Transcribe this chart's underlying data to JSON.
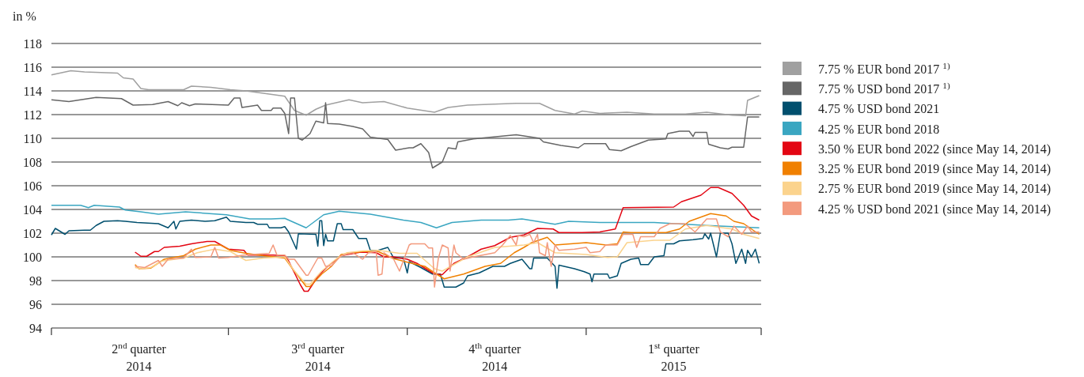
{
  "chart_data": {
    "type": "line",
    "ylabel": "in %",
    "ylim": [
      94,
      118
    ],
    "yticks": [
      94,
      96,
      98,
      100,
      102,
      104,
      106,
      108,
      110,
      112,
      114,
      116,
      118
    ],
    "xlim": [
      "2014-04-01",
      "2015-04-01"
    ],
    "xticks": [
      {
        "value": "2014-04-01",
        "label": null
      },
      {
        "value": "2014-05-16",
        "label": "2$^{nd}$ quarter 2014"
      },
      {
        "value": "2014-07-01",
        "label": null
      },
      {
        "value": "2014-08-16",
        "label": "3$^{rd}$ quarter 2014"
      },
      {
        "value": "2014-10-01",
        "label": null
      },
      {
        "value": "2014-11-15",
        "label": "4$^{th}$ quarter 2014"
      },
      {
        "value": "2015-01-01",
        "label": null
      },
      {
        "value": "2015-02-15",
        "label": "1$^{st}$ quarter 2015"
      },
      {
        "value": "2015-04-01",
        "label": null
      }
    ],
    "grid": "y",
    "legend": "right",
    "series": [
      {
        "name": "7.75 % EUR bond 2017 $^{1)}$",
        "color": "#a0a0a0",
        "x": [
          "2014-04-01",
          "2014-04-11",
          "2014-04-18",
          "2014-05-05",
          "2014-05-08",
          "2014-05-13",
          "2014-05-17",
          "2014-05-21",
          "2014-06-08",
          "2014-06-12",
          "2014-06-22",
          "2014-07-02",
          "2014-07-10",
          "2014-07-19",
          "2014-07-30",
          "2014-08-04",
          "2014-08-10",
          "2014-08-15",
          "2014-08-20",
          "2014-09-01",
          "2014-09-08",
          "2014-09-19",
          "2014-10-01",
          "2014-10-15",
          "2014-10-22",
          "2014-11-01",
          "2014-11-26",
          "2014-12-08",
          "2014-12-16",
          "2014-12-26",
          "2014-12-30",
          "2015-01-08",
          "2015-01-22",
          "2015-02-05",
          "2015-02-21",
          "2015-03-04",
          "2015-03-17",
          "2015-03-24",
          "2015-03-25",
          "2015-03-31"
        ],
        "values": [
          115.35,
          115.7,
          115.6,
          115.5,
          115.1,
          115.0,
          114.2,
          114.1,
          114.1,
          114.4,
          114.3,
          114.1,
          114.0,
          113.8,
          113.55,
          112.35,
          111.95,
          112.45,
          112.8,
          113.25,
          113.0,
          113.1,
          112.55,
          112.2,
          112.6,
          112.8,
          112.95,
          112.95,
          112.35,
          112.05,
          112.3,
          112.1,
          112.2,
          112.05,
          112.05,
          112.2,
          111.95,
          111.9,
          113.2,
          113.6
        ]
      },
      {
        "name": "7.75 % USD bond 2017 $^{1)}$",
        "color": "#666666",
        "x": [
          "2014-04-01",
          "2014-04-10",
          "2014-04-24",
          "2014-05-07",
          "2014-05-13",
          "2014-05-23",
          "2014-05-31",
          "2014-06-05",
          "2014-06-07",
          "2014-06-11",
          "2014-06-14",
          "2014-07-01",
          "2014-07-04",
          "2014-07-07",
          "2014-07-08",
          "2014-07-16",
          "2014-07-18",
          "2014-07-23",
          "2014-07-24",
          "2014-07-28",
          "2014-07-30",
          "2014-08-01",
          "2014-08-02",
          "2014-08-04",
          "2014-08-06",
          "2014-08-08",
          "2014-08-12",
          "2014-08-15",
          "2014-08-19",
          "2014-08-20",
          "2014-08-21",
          "2014-08-27",
          "2014-09-03",
          "2014-09-08",
          "2014-09-12",
          "2014-09-21",
          "2014-09-25",
          "2014-10-02",
          "2014-10-04",
          "2014-10-08",
          "2014-10-12",
          "2014-10-14",
          "2014-10-19",
          "2014-10-22",
          "2014-10-26",
          "2014-10-27",
          "2014-11-04",
          "2014-11-26",
          "2014-12-08",
          "2014-12-10",
          "2014-12-19",
          "2014-12-28",
          "2014-12-31",
          "2015-01-11",
          "2015-01-13",
          "2015-01-19",
          "2015-01-24",
          "2015-02-02",
          "2015-02-11",
          "2015-02-12",
          "2015-02-18",
          "2015-02-23",
          "2015-02-25",
          "2015-02-26",
          "2015-03-04",
          "2015-03-05",
          "2015-03-11",
          "2015-03-15",
          "2015-03-17",
          "2015-03-23",
          "2015-03-25",
          "2015-03-31"
        ],
        "values": [
          113.25,
          113.1,
          113.45,
          113.35,
          112.8,
          112.85,
          113.1,
          112.75,
          113.0,
          112.75,
          112.9,
          112.8,
          113.4,
          113.4,
          112.6,
          112.8,
          112.35,
          112.35,
          112.55,
          112.55,
          112.1,
          110.4,
          113.4,
          113.4,
          110.0,
          109.85,
          110.4,
          111.45,
          111.3,
          113.0,
          111.25,
          111.2,
          111.0,
          110.8,
          110.1,
          109.9,
          109.0,
          109.2,
          109.2,
          109.55,
          108.8,
          107.5,
          108.0,
          109.2,
          109.1,
          109.7,
          109.95,
          110.3,
          110.0,
          109.7,
          109.4,
          109.2,
          109.55,
          109.55,
          109.05,
          108.95,
          109.3,
          109.85,
          109.95,
          110.4,
          110.6,
          110.6,
          110.15,
          110.5,
          110.5,
          109.5,
          109.2,
          109.1,
          109.25,
          109.25,
          111.8,
          111.8
        ]
      },
      {
        "name": "4.75 % USD bond 2021",
        "color": "#004f6e",
        "x": [
          "2014-04-01",
          "2014-04-03",
          "2014-04-08",
          "2014-04-10",
          "2014-04-18",
          "2014-04-21",
          "2014-04-24",
          "2014-04-28",
          "2014-05-05",
          "2014-05-09",
          "2014-05-15",
          "2014-05-26",
          "2014-05-31",
          "2014-06-03",
          "2014-06-04",
          "2014-06-06",
          "2014-06-12",
          "2014-06-19",
          "2014-06-24",
          "2014-06-30",
          "2014-07-02",
          "2014-07-10",
          "2014-07-14",
          "2014-07-16",
          "2014-07-21",
          "2014-07-22",
          "2014-07-28",
          "2014-07-30",
          "2014-08-01",
          "2014-08-05",
          "2014-08-06",
          "2014-08-15",
          "2014-08-16",
          "2014-08-17",
          "2014-08-18",
          "2014-08-19",
          "2014-08-20",
          "2014-08-21",
          "2014-08-24",
          "2014-08-26",
          "2014-08-28",
          "2014-08-29",
          "2014-09-03",
          "2014-09-06",
          "2014-09-10",
          "2014-09-12",
          "2014-09-16",
          "2014-09-21",
          "2014-09-24",
          "2014-09-29",
          "2014-10-01",
          "2014-10-02",
          "2014-10-08",
          "2014-10-14",
          "2014-10-18",
          "2014-10-20",
          "2014-10-26",
          "2014-10-30",
          "2014-11-01",
          "2014-11-07",
          "2014-11-14",
          "2014-11-20",
          "2014-11-23",
          "2014-11-29",
          "2014-12-03",
          "2014-12-04",
          "2014-12-05",
          "2014-12-12",
          "2014-12-16",
          "2014-12-17",
          "2014-12-18",
          "2014-12-26",
          "2014-12-31",
          "2015-01-03",
          "2015-01-04",
          "2015-01-05",
          "2015-01-12",
          "2015-01-13",
          "2015-01-17",
          "2015-01-19",
          "2015-01-24",
          "2015-01-28",
          "2015-01-29",
          "2015-02-02",
          "2015-02-05",
          "2015-02-10",
          "2015-02-11",
          "2015-02-15",
          "2015-02-18",
          "2015-02-25",
          "2015-03-02",
          "2015-03-03",
          "2015-03-05",
          "2015-03-06",
          "2015-03-09",
          "2015-03-11",
          "2015-03-15",
          "2015-03-17",
          "2015-03-19",
          "2015-03-22",
          "2015-03-24",
          "2015-03-25",
          "2015-03-27",
          "2015-03-29",
          "2015-03-31"
        ],
        "values": [
          101.85,
          102.4,
          101.9,
          102.2,
          102.25,
          102.25,
          102.65,
          103.0,
          103.05,
          103.0,
          102.9,
          102.8,
          102.45,
          103.0,
          102.35,
          103.0,
          103.1,
          103.0,
          103.05,
          103.35,
          103.0,
          102.9,
          102.9,
          102.75,
          102.75,
          102.45,
          102.45,
          102.55,
          102.1,
          100.65,
          101.95,
          101.9,
          100.9,
          103.05,
          103.05,
          100.95,
          101.9,
          101.35,
          101.35,
          102.8,
          102.8,
          102.3,
          102.3,
          101.55,
          101.55,
          100.55,
          100.55,
          100.8,
          99.9,
          99.9,
          98.65,
          99.6,
          99.1,
          98.55,
          98.55,
          97.45,
          97.45,
          97.8,
          98.4,
          98.65,
          99.2,
          99.2,
          99.45,
          99.8,
          99.0,
          99.0,
          99.9,
          99.9,
          99.2,
          97.35,
          99.3,
          99.0,
          98.75,
          98.55,
          97.9,
          98.55,
          98.55,
          98.2,
          98.4,
          99.45,
          99.8,
          99.9,
          99.35,
          99.35,
          100.0,
          100.1,
          101.1,
          101.1,
          101.35,
          101.45,
          101.55,
          101.95,
          101.5,
          102.0,
          100.0,
          102.0,
          102.0,
          101.1,
          99.45,
          100.65,
          99.45,
          100.55,
          100.0,
          100.65,
          99.45
        ]
      },
      {
        "name": "4.25 % EUR bond 2018",
        "color": "#3aa6c1",
        "x": [
          "2014-04-01",
          "2014-04-16",
          "2014-04-20",
          "2014-04-23",
          "2014-05-06",
          "2014-05-09",
          "2014-05-17",
          "2014-05-26",
          "2014-06-09",
          "2014-06-30",
          "2014-07-12",
          "2014-07-23",
          "2014-07-30",
          "2014-08-10",
          "2014-08-19",
          "2014-08-27",
          "2014-09-12",
          "2014-09-29",
          "2014-10-08",
          "2014-10-16",
          "2014-10-24",
          "2014-11-08",
          "2014-11-22",
          "2014-11-29",
          "2014-12-16",
          "2014-12-23",
          "2015-01-08",
          "2015-02-05",
          "2015-03-04",
          "2015-03-31"
        ],
        "values": [
          104.35,
          104.35,
          104.15,
          104.35,
          104.2,
          103.95,
          103.8,
          103.6,
          103.8,
          103.55,
          103.2,
          103.2,
          103.25,
          102.45,
          103.55,
          103.85,
          103.6,
          103.1,
          102.9,
          102.45,
          102.9,
          103.1,
          103.1,
          103.2,
          102.75,
          103.0,
          102.9,
          102.9,
          102.65,
          102.45
        ]
      },
      {
        "name": "3.50 % EUR bond 2022 (since May 14, 2014)",
        "color": "#e30613",
        "x": [
          "2014-05-14",
          "2014-05-17",
          "2014-05-20",
          "2014-05-24",
          "2014-05-26",
          "2014-05-29",
          "2014-06-06",
          "2014-06-12",
          "2014-06-20",
          "2014-06-24",
          "2014-07-01",
          "2014-07-09",
          "2014-07-11",
          "2014-07-24",
          "2014-07-30",
          "2014-08-01",
          "2014-08-07",
          "2014-08-09",
          "2014-08-11",
          "2014-08-16",
          "2014-08-21",
          "2014-08-28",
          "2014-09-07",
          "2014-09-15",
          "2014-09-19",
          "2014-09-24",
          "2014-10-01",
          "2014-10-06",
          "2014-10-15",
          "2014-10-19",
          "2014-10-25",
          "2014-11-01",
          "2014-11-08",
          "2014-11-15",
          "2014-11-23",
          "2014-11-30",
          "2014-12-07",
          "2014-12-15",
          "2014-12-18",
          "2014-12-30",
          "2015-01-08",
          "2015-01-16",
          "2015-01-20",
          "2015-02-15",
          "2015-02-19",
          "2015-03-01",
          "2015-03-06",
          "2015-03-10",
          "2015-03-17",
          "2015-03-23",
          "2015-03-27",
          "2015-03-31"
        ],
        "values": [
          100.4,
          100.05,
          100.05,
          100.45,
          100.45,
          100.8,
          100.9,
          101.1,
          101.3,
          101.3,
          100.65,
          100.55,
          100.15,
          100.15,
          100.1,
          99.65,
          97.65,
          97.1,
          97.1,
          98.35,
          99.2,
          100.1,
          100.4,
          100.35,
          100.0,
          100.0,
          99.8,
          99.45,
          98.55,
          98.5,
          99.45,
          100.0,
          100.65,
          100.95,
          101.65,
          101.85,
          102.4,
          102.35,
          102.05,
          102.05,
          102.1,
          102.35,
          104.15,
          104.2,
          104.65,
          105.2,
          105.85,
          105.85,
          105.35,
          104.35,
          103.45,
          103.1
        ]
      },
      {
        "name": "3.25 % EUR bond 2019 (since May 14, 2014)",
        "color": "#f08000",
        "x": [
          "2014-05-14",
          "2014-05-16",
          "2014-05-22",
          "2014-05-29",
          "2014-06-08",
          "2014-06-14",
          "2014-06-22",
          "2014-06-27",
          "2014-07-02",
          "2014-07-10",
          "2014-07-19",
          "2014-07-30",
          "2014-08-03",
          "2014-08-10",
          "2014-08-12",
          "2014-08-18",
          "2014-08-23",
          "2014-08-28",
          "2014-09-08",
          "2014-09-16",
          "2014-09-24",
          "2014-10-01",
          "2014-10-10",
          "2014-10-16",
          "2014-10-20",
          "2014-10-30",
          "2014-11-10",
          "2014-11-18",
          "2014-11-25",
          "2014-11-30",
          "2014-12-04",
          "2014-12-12",
          "2014-12-16",
          "2015-01-01",
          "2015-01-11",
          "2015-01-17",
          "2015-01-20",
          "2015-01-24",
          "2015-02-11",
          "2015-02-18",
          "2015-02-23",
          "2015-03-06",
          "2015-03-14",
          "2015-03-18",
          "2015-03-23",
          "2015-03-31"
        ],
        "values": [
          99.35,
          99.0,
          99.05,
          99.8,
          100.1,
          100.65,
          101.0,
          101.0,
          100.55,
          100.3,
          100.1,
          99.9,
          99.0,
          97.5,
          97.5,
          98.55,
          99.2,
          100.2,
          100.45,
          100.45,
          99.85,
          99.55,
          99.2,
          98.55,
          98.15,
          98.55,
          99.2,
          99.45,
          100.35,
          100.8,
          101.2,
          101.65,
          101.0,
          101.2,
          101.0,
          101.1,
          102.1,
          102.05,
          102.05,
          102.35,
          103.0,
          103.65,
          103.45,
          103.0,
          102.8,
          101.9
        ]
      },
      {
        "name": "2.75 % EUR bond 2019 (since May 14, 2014)",
        "color": "#fbd38d",
        "x": [
          "2014-05-14",
          "2014-05-17",
          "2014-05-22",
          "2014-05-28",
          "2014-06-08",
          "2014-06-15",
          "2014-06-24",
          "2014-07-02",
          "2014-07-10",
          "2014-07-19",
          "2014-07-30",
          "2014-08-04",
          "2014-08-10",
          "2014-08-12",
          "2014-08-18",
          "2014-08-26",
          "2014-08-31",
          "2014-09-08",
          "2014-09-16",
          "2014-09-27",
          "2014-10-06",
          "2014-10-15",
          "2014-10-19",
          "2014-10-26",
          "2014-11-01",
          "2014-11-15",
          "2014-11-30",
          "2014-12-07",
          "2014-12-16",
          "2015-01-01",
          "2015-01-12",
          "2015-01-17",
          "2015-01-22",
          "2015-02-05",
          "2015-02-13",
          "2015-02-21",
          "2015-03-04",
          "2015-03-17",
          "2015-03-23",
          "2015-03-31"
        ],
        "values": [
          99.1,
          99.0,
          99.1,
          99.65,
          99.9,
          100.35,
          100.65,
          100.45,
          99.7,
          99.9,
          100.0,
          98.8,
          97.7,
          97.7,
          98.8,
          99.9,
          100.35,
          100.5,
          100.55,
          100.3,
          100.3,
          99.0,
          98.8,
          99.45,
          100.0,
          100.8,
          101.0,
          101.2,
          100.35,
          100.2,
          99.95,
          100.0,
          101.2,
          101.4,
          101.4,
          102.35,
          102.65,
          102.35,
          101.9,
          101.55
        ]
      },
      {
        "name": "4.25 % USD bond 2021 (since May 14, 2014)",
        "color": "#f39a7e",
        "x": [
          "2014-05-14",
          "2014-05-19",
          "2014-05-26",
          "2014-05-28",
          "2014-05-31",
          "2014-06-08",
          "2014-06-12",
          "2014-06-14",
          "2014-06-22",
          "2014-06-24",
          "2014-06-26",
          "2014-07-01",
          "2014-07-09",
          "2014-07-22",
          "2014-07-24",
          "2014-07-26",
          "2014-07-30",
          "2014-08-01",
          "2014-08-04",
          "2014-08-10",
          "2014-08-11",
          "2014-08-16",
          "2014-08-18",
          "2014-08-20",
          "2014-08-23",
          "2014-08-28",
          "2014-09-03",
          "2014-09-08",
          "2014-09-11",
          "2014-09-15",
          "2014-09-16",
          "2014-09-18",
          "2014-09-19",
          "2014-09-24",
          "2014-09-27",
          "2014-10-02",
          "2014-10-03",
          "2014-10-10",
          "2014-10-12",
          "2014-10-14",
          "2014-10-15",
          "2014-10-17",
          "2014-10-19",
          "2014-10-22",
          "2014-10-23",
          "2014-10-25",
          "2014-10-26",
          "2014-10-30",
          "2014-11-04",
          "2014-11-15",
          "2014-11-19",
          "2014-11-23",
          "2014-11-26",
          "2014-11-27",
          "2014-11-30",
          "2014-12-03",
          "2014-12-05",
          "2014-12-07",
          "2014-12-08",
          "2014-12-11",
          "2014-12-12",
          "2014-12-14",
          "2014-12-16",
          "2014-12-18",
          "2014-12-26",
          "2015-01-01",
          "2015-01-03",
          "2015-01-08",
          "2015-01-11",
          "2015-01-17",
          "2015-01-20",
          "2015-01-25",
          "2015-01-27",
          "2015-01-29",
          "2015-02-05",
          "2015-02-08",
          "2015-02-13",
          "2015-02-21",
          "2015-02-26",
          "2015-03-04",
          "2015-03-09",
          "2015-03-11",
          "2015-03-15",
          "2015-03-18",
          "2015-03-22",
          "2015-03-25",
          "2015-03-27",
          "2015-03-31"
        ],
        "values": [
          99.2,
          99.1,
          99.7,
          99.2,
          99.8,
          99.9,
          100.65,
          99.95,
          100.0,
          100.8,
          99.9,
          99.95,
          100.15,
          100.3,
          101.0,
          100.15,
          100.15,
          99.8,
          99.8,
          98.45,
          98.45,
          99.9,
          99.9,
          99.2,
          99.25,
          100.1,
          100.35,
          99.8,
          100.35,
          100.45,
          98.45,
          98.55,
          100.35,
          99.8,
          98.8,
          101.0,
          101.1,
          101.1,
          100.75,
          100.75,
          97.45,
          99.9,
          101.0,
          100.75,
          98.8,
          101.0,
          100.35,
          99.8,
          100.0,
          100.35,
          101.0,
          101.8,
          101.0,
          101.8,
          101.7,
          101.9,
          101.2,
          101.9,
          100.35,
          100.1,
          101.2,
          99.2,
          101.0,
          100.55,
          100.65,
          100.8,
          100.35,
          100.45,
          101.0,
          101.0,
          101.9,
          101.9,
          100.8,
          101.7,
          101.7,
          102.4,
          102.8,
          102.8,
          102.1,
          103.2,
          103.2,
          102.1,
          101.7,
          102.6,
          101.9,
          102.6,
          102.1,
          102.1
        ]
      }
    ]
  }
}
